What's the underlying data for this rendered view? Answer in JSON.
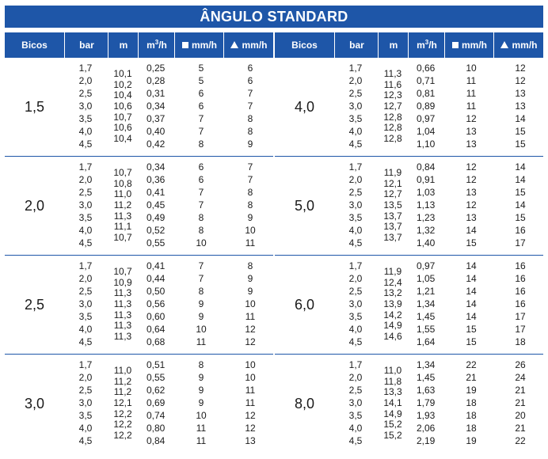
{
  "title": "ÂNGULO STANDARD",
  "headers": {
    "bicos": "Bicos",
    "bar": "bar",
    "m": "m",
    "m3h_base": "m",
    "m3h_exp": "3",
    "m3h_tail": "/h",
    "square_mmh": "mm/h",
    "triangle_mmh": "mm/h"
  },
  "icons": {
    "square": "square-icon",
    "triangle": "triangle-icon"
  },
  "colors": {
    "accent": "#1e56a8",
    "header_text": "#ffffff",
    "body_text": "#1a1a1a"
  },
  "tables": [
    {
      "groups": [
        {
          "bico": "1,5",
          "bar": [
            "1,7",
            "2,0",
            "2,5",
            "3,0",
            "3,5",
            "4,0",
            "4,5"
          ],
          "m": [
            "10,1",
            "10,2",
            "10,4",
            "10,6",
            "10,7",
            "10,6",
            "10,4"
          ],
          "m3h": [
            "0,25",
            "0,28",
            "0,31",
            "0,34",
            "0,37",
            "0,40",
            "0,42"
          ],
          "square_mmh": [
            "5",
            "5",
            "6",
            "6",
            "7",
            "7",
            "8"
          ],
          "triangle_mmh": [
            "6",
            "6",
            "7",
            "7",
            "8",
            "8",
            "9"
          ]
        },
        {
          "bico": "2,0",
          "bar": [
            "1,7",
            "2,0",
            "2,5",
            "3,0",
            "3,5",
            "4,0",
            "4,5"
          ],
          "m": [
            "10,7",
            "10,8",
            "11,0",
            "11,2",
            "11,3",
            "11,1",
            "10,7"
          ],
          "m3h": [
            "0,34",
            "0,36",
            "0,41",
            "0,45",
            "0,49",
            "0,52",
            "0,55"
          ],
          "square_mmh": [
            "6",
            "6",
            "7",
            "7",
            "8",
            "8",
            "10"
          ],
          "triangle_mmh": [
            "7",
            "7",
            "8",
            "8",
            "9",
            "10",
            "11"
          ]
        },
        {
          "bico": "2,5",
          "bar": [
            "1,7",
            "2,0",
            "2,5",
            "3,0",
            "3,5",
            "4,0",
            "4,5"
          ],
          "m": [
            "10,7",
            "10,9",
            "11,3",
            "11,3",
            "11,3",
            "11,3",
            "11,3"
          ],
          "m3h": [
            "0,41",
            "0,44",
            "0,50",
            "0,56",
            "0,60",
            "0,64",
            "0,68"
          ],
          "square_mmh": [
            "7",
            "7",
            "8",
            "9",
            "9",
            "10",
            "11"
          ],
          "triangle_mmh": [
            "8",
            "9",
            "9",
            "10",
            "11",
            "12",
            "12"
          ]
        },
        {
          "bico": "3,0",
          "bar": [
            "1,7",
            "2,0",
            "2,5",
            "3,0",
            "3,5",
            "4,0",
            "4,5"
          ],
          "m": [
            "11,0",
            "11,2",
            "11,2",
            "12,1",
            "12,2",
            "12,2",
            "12,2"
          ],
          "m3h": [
            "0,51",
            "0,55",
            "0,62",
            "0,69",
            "0,74",
            "0,80",
            "0,84"
          ],
          "square_mmh": [
            "8",
            "9",
            "9",
            "9",
            "10",
            "11",
            "11"
          ],
          "triangle_mmh": [
            "10",
            "10",
            "11",
            "11",
            "12",
            "12",
            "13"
          ]
        }
      ]
    },
    {
      "groups": [
        {
          "bico": "4,0",
          "bar": [
            "1,7",
            "2,0",
            "2,5",
            "3,0",
            "3,5",
            "4,0",
            "4,5"
          ],
          "m": [
            "11,3",
            "11,6",
            "12,3",
            "12,7",
            "12,8",
            "12,8",
            "12,8"
          ],
          "m3h": [
            "0,66",
            "0,71",
            "0,81",
            "0,89",
            "0,97",
            "1,04",
            "1,10"
          ],
          "square_mmh": [
            "10",
            "11",
            "11",
            "11",
            "12",
            "13",
            "13"
          ],
          "triangle_mmh": [
            "12",
            "12",
            "13",
            "13",
            "14",
            "15",
            "15"
          ]
        },
        {
          "bico": "5,0",
          "bar": [
            "1,7",
            "2,0",
            "2,5",
            "3,0",
            "3,5",
            "4,0",
            "4,5"
          ],
          "m": [
            "11,9",
            "12,1",
            "12,7",
            "13,5",
            "13,7",
            "13,7",
            "13,7"
          ],
          "m3h": [
            "0,84",
            "0,91",
            "1,03",
            "1,13",
            "1,23",
            "1,32",
            "1,40"
          ],
          "square_mmh": [
            "12",
            "12",
            "13",
            "12",
            "13",
            "14",
            "15"
          ],
          "triangle_mmh": [
            "14",
            "14",
            "15",
            "14",
            "15",
            "16",
            "17"
          ]
        },
        {
          "bico": "6,0",
          "bar": [
            "1,7",
            "2,0",
            "2,5",
            "3,0",
            "3,5",
            "4,0",
            "4,5"
          ],
          "m": [
            "11,9",
            "12,4",
            "13,2",
            "13,9",
            "14,2",
            "14,9",
            "14,6"
          ],
          "m3h": [
            "0,97",
            "1,05",
            "1,21",
            "1,34",
            "1,45",
            "1,55",
            "1,64"
          ],
          "square_mmh": [
            "14",
            "14",
            "14",
            "14",
            "14",
            "15",
            "15"
          ],
          "triangle_mmh": [
            "16",
            "16",
            "16",
            "16",
            "17",
            "17",
            "18"
          ]
        },
        {
          "bico": "8,0",
          "bar": [
            "1,7",
            "2,0",
            "2,5",
            "3,0",
            "3,5",
            "4,0",
            "4,5"
          ],
          "m": [
            "11,0",
            "11,8",
            "13,3",
            "14,1",
            "14,9",
            "15,2",
            "15,2"
          ],
          "m3h": [
            "1,34",
            "1,45",
            "1,63",
            "1,79",
            "1,93",
            "2,06",
            "2,19"
          ],
          "square_mmh": [
            "22",
            "21",
            "19",
            "18",
            "18",
            "18",
            "19"
          ],
          "triangle_mmh": [
            "26",
            "24",
            "21",
            "21",
            "20",
            "21",
            "22"
          ]
        }
      ]
    }
  ]
}
